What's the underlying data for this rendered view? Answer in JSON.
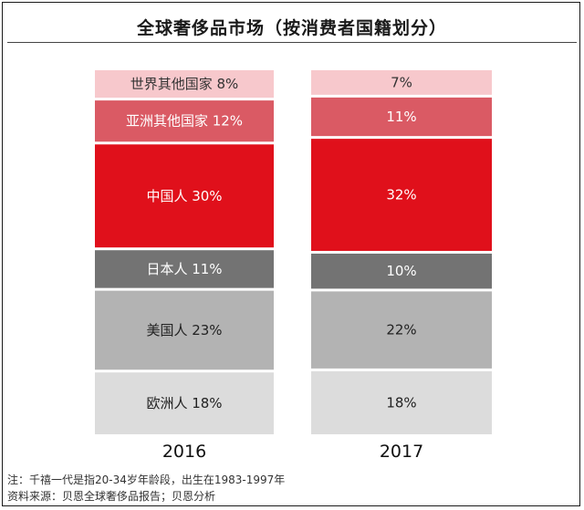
{
  "title": "全球奢侈品市场（按消费者国籍划分）",
  "chart_data": {
    "type": "bar",
    "stacked": true,
    "unit": "%",
    "categories": [
      "2016",
      "2017"
    ],
    "series": [
      {
        "name": "欧洲人",
        "values": [
          18,
          18
        ],
        "color": "#dcdcdc",
        "text_color": "#222222"
      },
      {
        "name": "美国人",
        "values": [
          23,
          22
        ],
        "color": "#b3b3b3",
        "text_color": "#222222"
      },
      {
        "name": "日本人",
        "values": [
          11,
          10
        ],
        "color": "#737373",
        "text_color": "#ffffff"
      },
      {
        "name": "中国人",
        "values": [
          30,
          32
        ],
        "color": "#e0101b",
        "text_color": "#ffffff"
      },
      {
        "name": "亚洲其他国家",
        "values": [
          12,
          11
        ],
        "color": "#da5a64",
        "text_color": "#ffffff"
      },
      {
        "name": "世界其他国家",
        "values": [
          8,
          7
        ],
        "color": "#f7c8cc",
        "text_color": "#333333"
      }
    ],
    "segment_labels": [
      [
        "欧洲人 18%",
        "美国人 23%",
        "日本人 11%",
        "中国人 30%",
        "亚洲其他国家 12%",
        "世界其他国家 8%"
      ],
      [
        "18%",
        "22%",
        "10%",
        "32%",
        "11%",
        "7%"
      ]
    ]
  },
  "notes": [
    "注：千禧一代是指20-34岁年龄段，出生在1983-1997年",
    "资料来源：贝恩全球奢侈品报告；贝恩分析"
  ]
}
